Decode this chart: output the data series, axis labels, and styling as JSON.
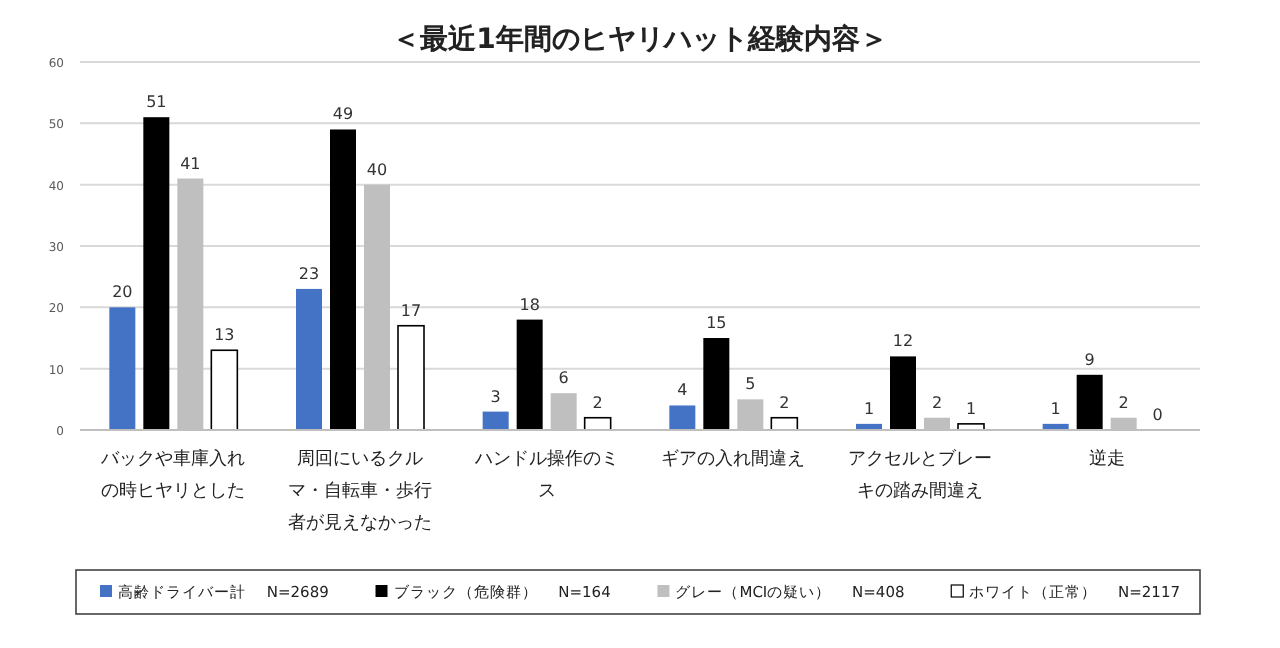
{
  "chart_data": {
    "type": "bar",
    "title": "＜最近1年間のヒヤリハット経験内容＞",
    "categories": [
      "バックや車庫入れの時ヒヤリとした",
      "周回にいるクルマ・自転車・歩行者が見えなかった",
      "ハンドル操作のミス",
      "ギアの入れ間違え",
      "アクセルとブレーキの踏み間違え",
      "逆走"
    ],
    "series": [
      {
        "name": "高齢ドライバー計　 N=2689",
        "color": "#4472c4",
        "values": [
          20,
          23,
          3,
          4,
          1,
          1
        ]
      },
      {
        "name": "ブラック（危険群）　 N=164",
        "color": "#000000",
        "values": [
          51,
          49,
          18,
          15,
          12,
          9
        ]
      },
      {
        "name": "グレー（MCIの疑い）　 N=408",
        "color": "#bfbfbf",
        "values": [
          41,
          40,
          6,
          5,
          2,
          2
        ]
      },
      {
        "name": "ホワイト（正常）　 N=2117",
        "color": "#ffffff",
        "values": [
          13,
          17,
          2,
          2,
          1,
          0
        ]
      }
    ],
    "ylim": [
      0,
      60
    ],
    "yticks": [
      0,
      10,
      20,
      30,
      40,
      50,
      60
    ],
    "grid": "y",
    "legend": "bottom",
    "data_labels": true
  }
}
